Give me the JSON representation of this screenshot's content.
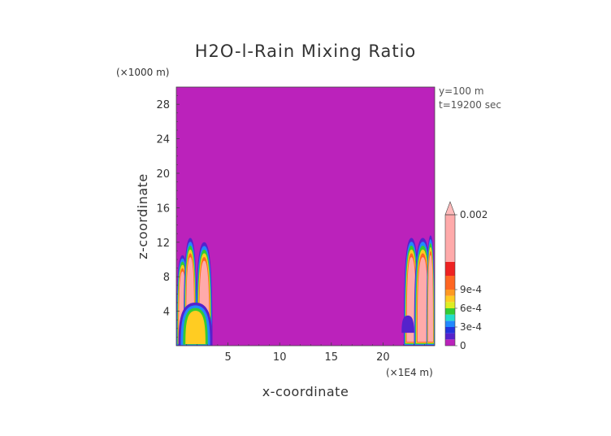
{
  "chart_data": {
    "type": "heatmap",
    "title": "H2O-l-Rain Mixing Ratio",
    "xlabel": "x-coordinate",
    "ylabel": "z-coordinate",
    "x_scale_label": "(×1E4 m)",
    "y_scale_label": "(×1000 m)",
    "annotations": [
      "y=100 m",
      "t=19200 sec"
    ],
    "xlim": [
      0,
      25
    ],
    "ylim": [
      0,
      30
    ],
    "x_ticks": [
      5,
      10,
      15,
      20
    ],
    "y_ticks": [
      4,
      8,
      12,
      16,
      20,
      24,
      28
    ],
    "background_color": "#bb22bb",
    "colorbar": {
      "range": [
        0,
        0.002
      ],
      "tick_values": [
        0,
        0.0003,
        0.0006,
        0.0009,
        0.002
      ],
      "tick_labels": [
        "0",
        "3e-4",
        "6e-4",
        "9e-4",
        "0.002"
      ],
      "extend": "max",
      "bands": [
        {
          "from": 0,
          "to": 0.0001,
          "color": "#bb22bb"
        },
        {
          "from": 0.0001,
          "to": 0.0002,
          "color": "#5522cc"
        },
        {
          "from": 0.0002,
          "to": 0.0003,
          "color": "#2233dd"
        },
        {
          "from": 0.0003,
          "to": 0.0004,
          "color": "#2288ff"
        },
        {
          "from": 0.0004,
          "to": 0.0005,
          "color": "#22ddcc"
        },
        {
          "from": 0.0005,
          "to": 0.0006,
          "color": "#33cc33"
        },
        {
          "from": 0.0006,
          "to": 0.0007,
          "color": "#ddee22"
        },
        {
          "from": 0.0007,
          "to": 0.0008,
          "color": "#ffcc22"
        },
        {
          "from": 0.0008,
          "to": 0.0009,
          "color": "#ff9922"
        },
        {
          "from": 0.0009,
          "to": 0.001,
          "color": "#ff6622"
        },
        {
          "from": 0.001,
          "to": 0.0011,
          "color": "#ee2222"
        },
        {
          "from": 0.0011,
          "to": 0.002,
          "color": "#ffaaaa"
        }
      ],
      "overflow_color": "#ffbbbb"
    },
    "features": [
      {
        "x_range": [
          0.0,
          1.2
        ],
        "z_range": [
          0,
          10.5
        ],
        "max_value": 0.002
      },
      {
        "x_range": [
          0.7,
          2.0
        ],
        "z_range": [
          0,
          12.5
        ],
        "max_value": 0.002
      },
      {
        "x_range": [
          1.9,
          3.5
        ],
        "z_range": [
          0,
          12.0
        ],
        "max_value": 0.002
      },
      {
        "x_range": [
          0.2,
          3.5
        ],
        "z_range": [
          0,
          5
        ],
        "max_value": 0.0008
      },
      {
        "x_range": [
          22.0,
          23.5
        ],
        "z_range": [
          0,
          12.5
        ],
        "max_value": 0.002
      },
      {
        "x_range": [
          23.0,
          24.7
        ],
        "z_range": [
          0,
          12.5
        ],
        "max_value": 0.002
      },
      {
        "x_range": [
          24.2,
          25.0
        ],
        "z_range": [
          0,
          12.8
        ],
        "max_value": 0.002
      },
      {
        "x_range": [
          21.8,
          23.0
        ],
        "z_range": [
          1.5,
          3.5
        ],
        "max_value": 0.0003
      }
    ]
  }
}
